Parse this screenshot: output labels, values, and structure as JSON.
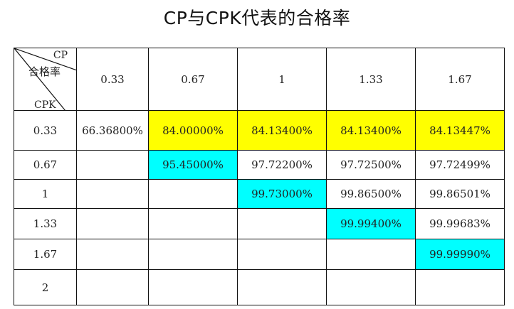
{
  "title": "CP与CPK代表的合格率",
  "corner": {
    "cp_label": "CP",
    "rate_label": "合格率",
    "cpk_label": "CPK"
  },
  "columns": [
    "0.33",
    "0.67",
    "1",
    "1.33",
    "1.67"
  ],
  "rows": [
    {
      "cpk": "0.33",
      "cells": [
        "66.36800%",
        "84.00000%",
        "84.13400%",
        "84.13400%",
        "84.13447%"
      ],
      "fills": [
        "",
        "yellow",
        "yellow",
        "yellow",
        "yellow"
      ]
    },
    {
      "cpk": "0.67",
      "cells": [
        "",
        "95.45000%",
        "97.72200%",
        "97.72500%",
        "97.72499%"
      ],
      "fills": [
        "",
        "cyan",
        "",
        "",
        ""
      ]
    },
    {
      "cpk": "1",
      "cells": [
        "",
        "",
        "99.73000%",
        "99.86500%",
        "99.86501%"
      ],
      "fills": [
        "",
        "",
        "cyan",
        "",
        ""
      ]
    },
    {
      "cpk": "1.33",
      "cells": [
        "",
        "",
        "",
        "99.99400%",
        "99.99683%"
      ],
      "fills": [
        "",
        "",
        "",
        "cyan",
        ""
      ]
    },
    {
      "cpk": "1.67",
      "cells": [
        "",
        "",
        "",
        "",
        "99.99990%"
      ],
      "fills": [
        "",
        "",
        "",
        "",
        "cyan"
      ]
    },
    {
      "cpk": "2",
      "cells": [
        "",
        "",
        "",
        "",
        ""
      ],
      "fills": [
        "",
        "",
        "",
        "",
        ""
      ]
    }
  ],
  "colors": {
    "yellow": "#ffff00",
    "cyan": "#00ffff",
    "border": "#111111"
  }
}
